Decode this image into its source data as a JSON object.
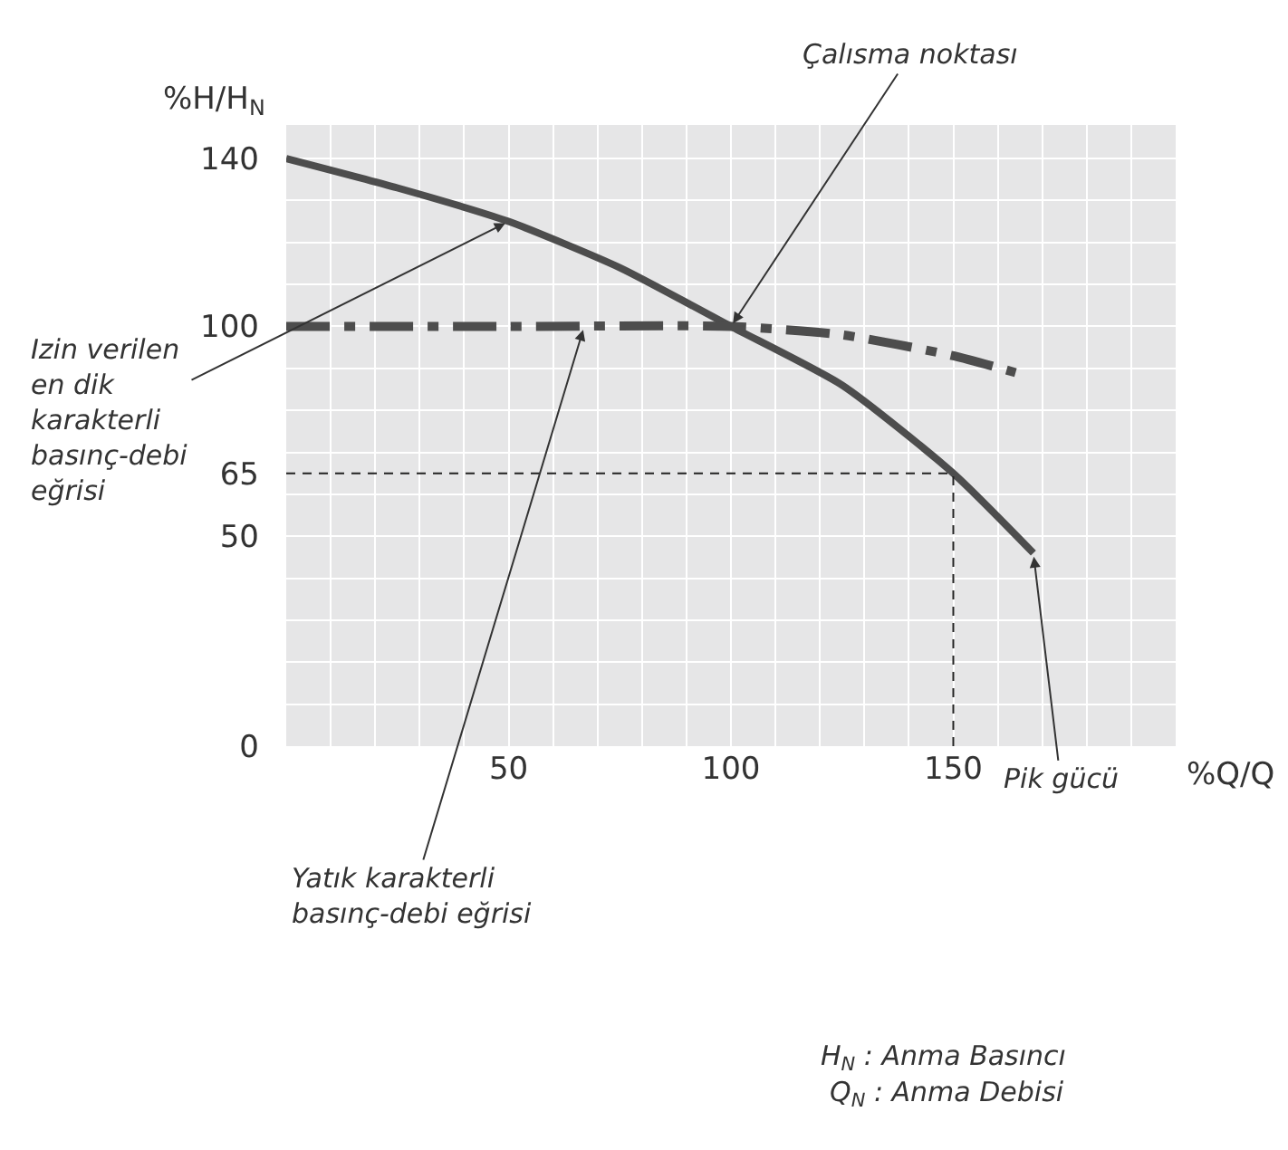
{
  "chart_data": {
    "type": "line",
    "xlabel": "%Q/Q",
    "ylabel": "%H/H$_{N}$",
    "xlim": [
      0,
      200
    ],
    "ylim": [
      0,
      148
    ],
    "xticks": [
      50,
      100,
      150
    ],
    "yticks": [
      0,
      50,
      65,
      100,
      140
    ],
    "grid": true,
    "series": [
      {
        "x": [
          0,
          25,
          50,
          75,
          100,
          125,
          150,
          168
        ],
        "values": [
          140,
          133,
          125,
          114,
          100,
          86,
          65,
          46
        ],
        "color": "#4d4d4d",
        "line_style": "solid"
      },
      {
        "x": [
          0,
          50,
          100,
          125,
          150,
          164
        ],
        "values": [
          100,
          100,
          100,
          98,
          93,
          89
        ],
        "color": "#4d4d4d",
        "line_style": "dashed"
      }
    ],
    "ref_lines": [
      {
        "axis": "y",
        "value": 65,
        "color": "#222222",
        "line_style": "dashed"
      },
      {
        "axis": "x",
        "value": 150,
        "color": "#222222",
        "line_style": "dashed"
      }
    ],
    "annotations": [
      {
        "text": "Çalısma noktası",
        "x": 100,
        "y": 100
      },
      {
        "text": "Izin verilen\nen dik\nkarakterli\nbasınç-debi\neğrisi",
        "x": 50,
        "y": 125
      },
      {
        "text": "Yatık karakterli\nbasınç-debi eğrisi",
        "x": 67,
        "y": 100
      },
      {
        "text": "Pik gücü",
        "x": 168,
        "y": 46
      },
      "H$_{N}$ : Anma Basıncı",
      "Q$_{N}$ : Anma Debisi"
    ]
  }
}
